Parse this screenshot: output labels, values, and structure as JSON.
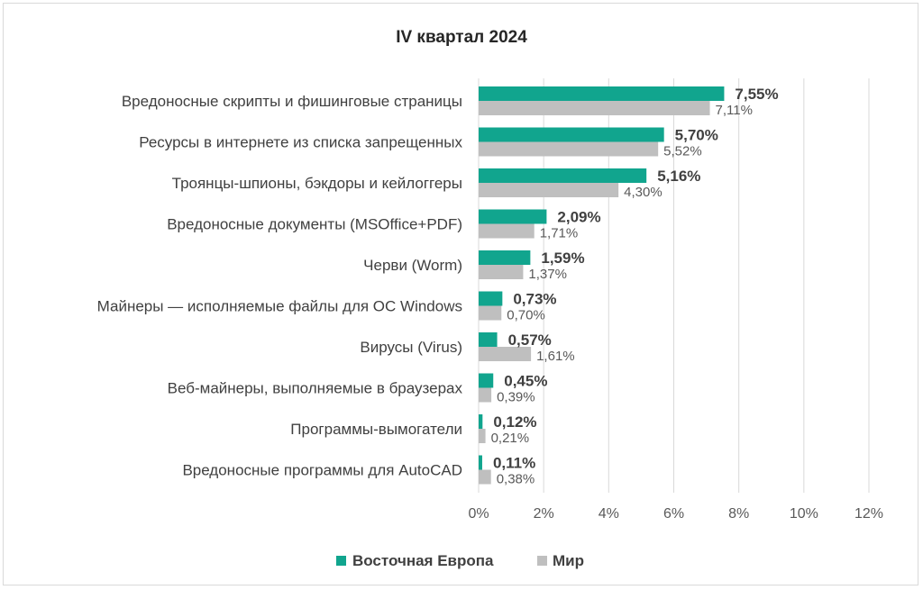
{
  "chart_data": {
    "type": "bar",
    "orientation": "horizontal",
    "title": "IV квартал 2024",
    "categories": [
      "Вредоносные скрипты и фишинговые страницы",
      "Ресурсы в интернете из списка запрещенных",
      "Троянцы-шпионы, бэкдоры и кейлоггеры",
      "Вредоносные документы (MSOffice+PDF)",
      "Черви (Worm)",
      "Майнеры — исполняемые файлы для ОС Windows",
      "Вирусы (Virus)",
      "Веб-майнеры, выполняемые в браузерах",
      "Программы-вымогатели",
      "Вредоносные программы для AutoCAD"
    ],
    "series": [
      {
        "name": "Восточная Европа",
        "color": "#11a58e",
        "values": [
          7.55,
          5.7,
          5.16,
          2.09,
          1.59,
          0.73,
          0.57,
          0.45,
          0.12,
          0.11
        ],
        "labels": [
          "7,55%",
          "5,70%",
          "5,16%",
          "2,09%",
          "1,59%",
          "0,73%",
          "0,57%",
          "0,45%",
          "0,12%",
          "0,11%"
        ]
      },
      {
        "name": "Мир",
        "color": "#bfbfbf",
        "values": [
          7.11,
          5.52,
          4.3,
          1.71,
          1.37,
          0.7,
          1.61,
          0.39,
          0.21,
          0.38
        ],
        "labels": [
          "7,11%",
          "5,52%",
          "4,30%",
          "1,71%",
          "1,37%",
          "0,70%",
          "1,61%",
          "0,39%",
          "0,21%",
          "0,38%"
        ]
      }
    ],
    "xlim": [
      0,
      12
    ],
    "xticks": [
      0,
      2,
      4,
      6,
      8,
      10,
      12
    ],
    "xtick_labels": [
      "0%",
      "2%",
      "4%",
      "6%",
      "8%",
      "10%",
      "12%"
    ],
    "grid": "vertical",
    "legend": "bottom"
  }
}
